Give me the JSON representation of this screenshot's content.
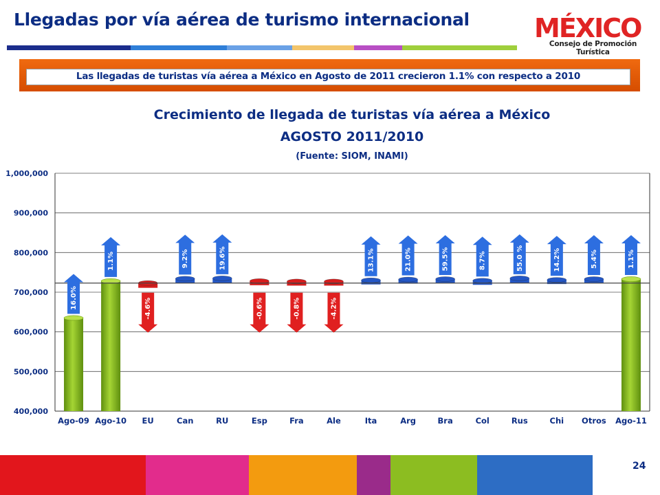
{
  "header": {
    "title": "Llegadas por vía aérea de turismo internacional",
    "logo_text": "MÉXICO",
    "logo_subtitle": "Consejo de Promoción Turística"
  },
  "banner": {
    "text": "Las llegadas de turistas vía aérea  a México en Agosto de 2011 crecieron 1.1% con respecto a 2010"
  },
  "chart_data": {
    "type": "bar",
    "title": "Crecimiento de llegada de turistas vía aérea a México",
    "subtitle": "AGOSTO 2011/2010",
    "source": "(Fuente: SIOM, INAMI)",
    "baseline": 723000,
    "ylim": [
      400000,
      1000000
    ],
    "yticks": [
      "400,000",
      "500,000",
      "600,000",
      "700,000",
      "800,000",
      "900,000",
      "1,000,000"
    ],
    "ytick_values": [
      400000,
      500000,
      600000,
      700000,
      800000,
      900000,
      1000000
    ],
    "grid": true,
    "categories": [
      "Ago-09",
      "Ago-10",
      "EU",
      "Can",
      "RU",
      "Esp",
      "Fra",
      "Ale",
      "Ita",
      "Arg",
      "Bra",
      "Col",
      "Rus",
      "Chi",
      "Otros",
      "Ago-11"
    ],
    "values": [
      635000,
      728000,
      711000,
      734000,
      735000,
      728000,
      727000,
      727000,
      730000,
      732000,
      733000,
      729000,
      735000,
      731000,
      733000,
      733000
    ],
    "kinds": [
      "total",
      "total",
      "down",
      "up",
      "up",
      "down",
      "down",
      "down",
      "up",
      "up",
      "up",
      "up",
      "up",
      "up",
      "up",
      "total"
    ],
    "growth_labels": [
      "16.0%",
      "1.1%",
      "-4.6%",
      "9.2%",
      "19.6%",
      "-0.6%",
      "-0.8%",
      "-4.2%",
      "13.1%",
      "21.0%",
      "59.5%",
      "8.7%",
      "55.0 %",
      "14.2%",
      "5.4%",
      "1.1%"
    ],
    "colors": {
      "total": "#8dc21f",
      "up": "#2457c5",
      "down": "#d61d1d"
    }
  },
  "footer": {
    "page_number": "24"
  }
}
